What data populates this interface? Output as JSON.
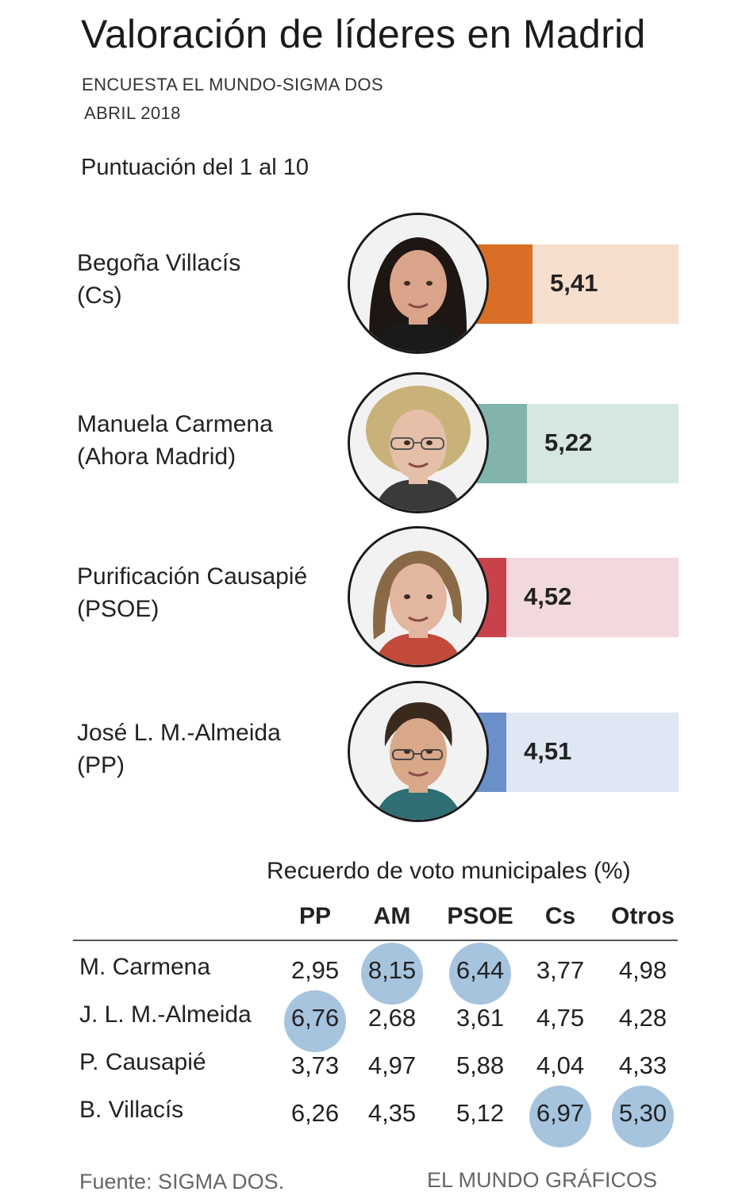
{
  "header": {
    "title": "Valoración de líderes en Madrid",
    "subtitle_line1": "ENCUESTA EL MUNDO-SIGMA DOS",
    "subtitle_line2": "ABRIL 2018",
    "scale_label": "Puntuación del 1 al 10"
  },
  "chart_data": [
    {
      "type": "bar",
      "orientation": "horizontal",
      "categories": [
        "Begoña Villacís (Cs)",
        "Manuela Carmena (Ahora Madrid)",
        "Purificación Causapié (PSOE)",
        "José L. M.-Almeida (PP)"
      ],
      "values": [
        5.41,
        5.22,
        4.52,
        4.51
      ],
      "value_labels": [
        "5,41",
        "5,22",
        "4,52",
        "4,51"
      ],
      "colors": [
        "#d96f27",
        "#83b4ab",
        "#c8424b",
        "#6a8fc9"
      ],
      "track_colors": [
        "#f6dfcc",
        "#d6e7e3",
        "#f2d9dd",
        "#dfe7f4"
      ],
      "title": "Puntuación del 1 al 10",
      "ylim": [
        0,
        10
      ]
    },
    {
      "type": "table",
      "title": "Recuerdo de voto municipales (%)",
      "columns": [
        "PP",
        "AM",
        "PSOE",
        "Cs",
        "Otros"
      ],
      "rows": [
        {
          "name": "M. Carmena",
          "values": [
            "2,95",
            "8,15",
            "6,44",
            "3,77",
            "4,98"
          ],
          "highlight": [
            false,
            true,
            true,
            false,
            false
          ]
        },
        {
          "name": "J. L. M.-Almeida",
          "values": [
            "6,76",
            "2,68",
            "3,61",
            "4,75",
            "4,28"
          ],
          "highlight": [
            true,
            false,
            false,
            false,
            false
          ]
        },
        {
          "name": "P. Causapié",
          "values": [
            "3,73",
            "4,97",
            "5,88",
            "4,04",
            "4,33"
          ],
          "highlight": [
            false,
            false,
            false,
            false,
            false
          ]
        },
        {
          "name": "B. Villacís",
          "values": [
            "6,26",
            "4,35",
            "5,12",
            "6,97",
            "5,30"
          ],
          "highlight": [
            false,
            false,
            false,
            true,
            true
          ]
        }
      ],
      "highlight_color": "#a6c4de"
    }
  ],
  "leaders": [
    {
      "name_line1": "Begoña Villacís",
      "name_line2": "(Cs)",
      "score": "5,41",
      "photo": "portrait-villacis"
    },
    {
      "name_line1": "Manuela Carmena",
      "name_line2": "(Ahora Madrid)",
      "score": "5,22",
      "photo": "portrait-carmena"
    },
    {
      "name_line1": "Purificación Causapié",
      "name_line2": "(PSOE)",
      "score": "4,52",
      "photo": "portrait-causapie"
    },
    {
      "name_line1": "José L. M.-Almeida",
      "name_line2": "(PP)",
      "score": "4,51",
      "photo": "portrait-almeida"
    }
  ],
  "footer": {
    "source": "Fuente: SIGMA DOS.",
    "credit": "EL MUNDO GRÁFICOS"
  }
}
